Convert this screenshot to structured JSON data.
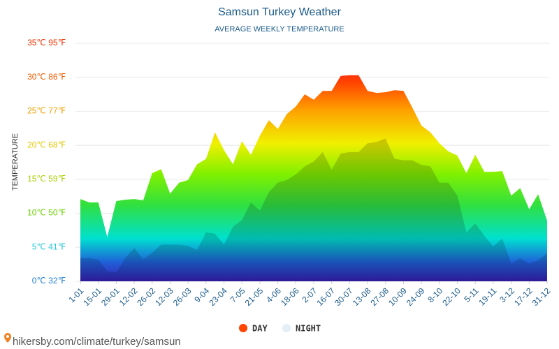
{
  "chart_data": {
    "type": "area",
    "title": "Samsun Turkey Weather",
    "subtitle": "AVERAGE WEEKLY TEMPERATURE",
    "y_label": "TEMPERATURE",
    "source": "hikersby.com/climate/turkey/samsun",
    "categories": [
      "1-01",
      null,
      "15-01",
      null,
      "29-01",
      null,
      "12-02",
      null,
      "26-02",
      null,
      "12-03",
      null,
      "26-03",
      null,
      "9-04",
      null,
      "23-04",
      null,
      "7-05",
      null,
      "21-05",
      null,
      "4-06",
      null,
      "18-06",
      null,
      "2-07",
      null,
      "16-07",
      null,
      "30-07",
      null,
      "13-08",
      null,
      "27-08",
      null,
      "10-09",
      null,
      "24-09",
      null,
      "8-10",
      null,
      "22-10",
      null,
      "5-11",
      null,
      "19-11",
      null,
      "3-12",
      null,
      "17-12",
      null,
      "31-12"
    ],
    "series": [
      {
        "name": "DAY",
        "color": "#ff4500",
        "values": [
          12.1,
          11.6,
          11.6,
          6.5,
          11.8,
          12.0,
          12.1,
          11.9,
          15.9,
          16.5,
          12.9,
          14.5,
          14.9,
          17.2,
          18.0,
          21.9,
          19.3,
          17.2,
          20.6,
          18.6,
          21.4,
          23.7,
          22.4,
          24.6,
          25.7,
          27.5,
          26.7,
          28.0,
          28.0,
          30.2,
          30.3,
          30.3,
          28.0,
          27.7,
          27.8,
          28.1,
          28.0,
          25.5,
          22.9,
          21.9,
          20.3,
          19.1,
          18.5,
          15.9,
          18.6,
          16.1,
          16.1,
          16.2,
          12.6,
          13.7,
          10.6,
          12.8,
          8.9
        ]
      },
      {
        "name": "NIGHT",
        "color": "#e6eef5",
        "values": [
          3.4,
          3.4,
          3.2,
          1.5,
          1.3,
          3.4,
          4.9,
          3.2,
          4.2,
          5.4,
          5.4,
          5.4,
          5.2,
          4.6,
          7.2,
          7.0,
          5.4,
          8.0,
          9.0,
          11.6,
          10.4,
          13.1,
          14.5,
          14.9,
          15.7,
          16.9,
          17.6,
          19.0,
          16.4,
          18.8,
          19.0,
          19.0,
          20.3,
          20.5,
          21.0,
          18.0,
          17.8,
          17.8,
          17.1,
          16.9,
          14.5,
          14.5,
          12.6,
          7.2,
          8.5,
          6.7,
          5.1,
          6.3,
          2.6,
          3.4,
          2.6,
          3.1,
          4.1
        ]
      }
    ],
    "ylim": [
      0,
      35
    ],
    "yticks": [
      {
        "value": 0,
        "label": "0℃ 32℉"
      },
      {
        "value": 5,
        "label": "5℃ 41℉"
      },
      {
        "value": 10,
        "label": "10℃ 50℉"
      },
      {
        "value": 15,
        "label": "15℃ 59℉"
      },
      {
        "value": 20,
        "label": "20℃ 68℉"
      },
      {
        "value": 25,
        "label": "25℃ 77℉"
      },
      {
        "value": 30,
        "label": "30℃ 86℉"
      },
      {
        "value": 35,
        "label": "35℃ 95℉"
      }
    ],
    "ytick_colors": [
      "#1f7fd0",
      "#1fc8d8",
      "#6ad000",
      "#a8d000",
      "#e0c800",
      "#f0a000",
      "#f05a00",
      "#f03000"
    ],
    "grid": true
  }
}
